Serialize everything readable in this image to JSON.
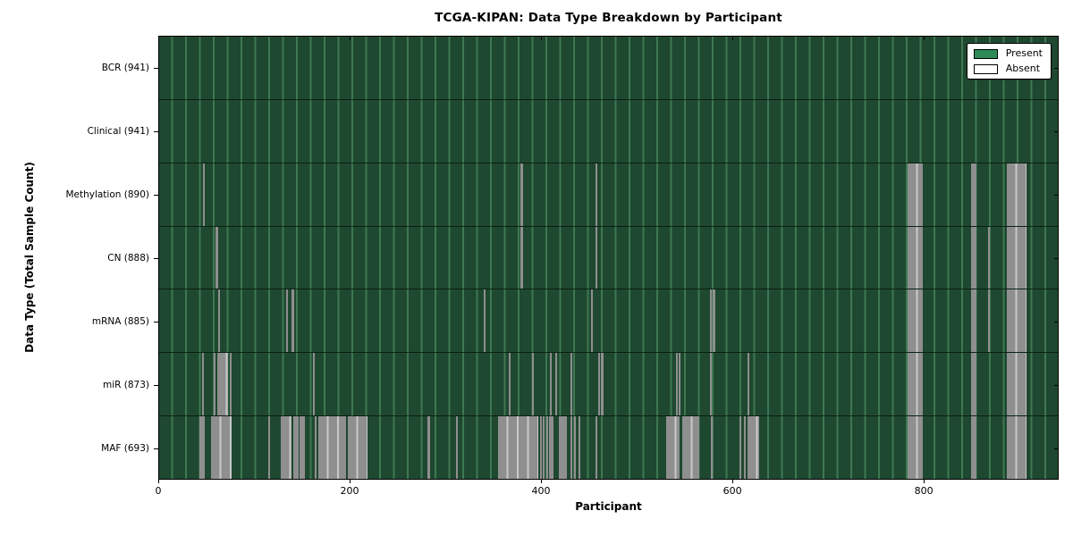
{
  "title": "TCGA-KIPAN: Data Type Breakdown by Participant",
  "axes": {
    "xlabel": "Participant",
    "ylabel": "Data Type (Total Sample Count)",
    "x_ticks": [
      "0",
      "200",
      "400",
      "600",
      "800"
    ]
  },
  "legend_entries": [
    {
      "label": "Present",
      "color": "#2e8b57"
    },
    {
      "label": "Absent",
      "color": "#ffffff"
    }
  ],
  "colors": {
    "present_fill_dense": "#1f4830",
    "present_grid_line": "#3e7852",
    "present_legend": "#2e8b57",
    "absent_fill": "#8f8f8f",
    "absent_light_stripe": "#c9c9c9",
    "frame": "#000000",
    "background": "#ffffff"
  },
  "chart_data": {
    "type": "heatmap",
    "title": "TCGA-KIPAN: Data Type Breakdown by Participant",
    "xlabel": "Participant",
    "ylabel": "Data Type (Total Sample Count)",
    "x_range": [
      0,
      941
    ],
    "x_tick_values": [
      0,
      200,
      400,
      600,
      800
    ],
    "legend": [
      "Present",
      "Absent"
    ],
    "grid": "vertical-light-lines",
    "legend_position": "upper right",
    "rows": [
      {
        "label": "BCR (941)",
        "data_type": "BCR",
        "present_count": 941,
        "absent_segments": []
      },
      {
        "label": "Clinical (941)",
        "data_type": "Clinical",
        "present_count": 941,
        "absent_segments": []
      },
      {
        "label": "Methylation (890)",
        "data_type": "Methylation",
        "present_count": 890,
        "absent_segments": [
          [
            46,
            48
          ],
          [
            378,
            381
          ],
          [
            457,
            459
          ],
          [
            784,
            800
          ],
          [
            850,
            856
          ],
          [
            888,
            908
          ]
        ]
      },
      {
        "label": "CN (888)",
        "data_type": "CN",
        "present_count": 888,
        "absent_segments": [
          [
            59,
            62
          ],
          [
            378,
            381
          ],
          [
            457,
            459
          ],
          [
            784,
            800
          ],
          [
            850,
            856
          ],
          [
            868,
            870
          ],
          [
            888,
            908
          ]
        ]
      },
      {
        "label": "mRNA (885)",
        "data_type": "mRNA",
        "present_count": 885,
        "absent_segments": [
          [
            62,
            64
          ],
          [
            133,
            135
          ],
          [
            139,
            141
          ],
          [
            340,
            342
          ],
          [
            452,
            454
          ],
          [
            577,
            579
          ],
          [
            580,
            582
          ],
          [
            784,
            800
          ],
          [
            850,
            856
          ],
          [
            868,
            870
          ],
          [
            888,
            908
          ]
        ]
      },
      {
        "label": "miR (873)",
        "data_type": "miR",
        "present_count": 873,
        "absent_segments": [
          [
            45,
            47
          ],
          [
            57,
            59
          ],
          [
            61,
            72
          ],
          [
            74,
            76
          ],
          [
            161,
            163
          ],
          [
            366,
            368
          ],
          [
            390,
            392
          ],
          [
            409,
            411
          ],
          [
            415,
            417
          ],
          [
            431,
            433
          ],
          [
            460,
            462
          ],
          [
            463,
            465
          ],
          [
            541,
            543
          ],
          [
            544,
            546
          ],
          [
            577,
            579
          ],
          [
            616,
            618
          ],
          [
            784,
            800
          ],
          [
            850,
            856
          ],
          [
            888,
            908
          ]
        ]
      },
      {
        "label": "MAF (693)",
        "data_type": "MAF",
        "present_count": 693,
        "absent_segments": [
          [
            42,
            48
          ],
          [
            54,
            76
          ],
          [
            114,
            116
          ],
          [
            127,
            139
          ],
          [
            140,
            146
          ],
          [
            147,
            153
          ],
          [
            163,
            165
          ],
          [
            167,
            196
          ],
          [
            198,
            218
          ],
          [
            281,
            284
          ],
          [
            311,
            313
          ],
          [
            355,
            397
          ],
          [
            399,
            401
          ],
          [
            402,
            404
          ],
          [
            405,
            407
          ],
          [
            408,
            413
          ],
          [
            419,
            427
          ],
          [
            431,
            433
          ],
          [
            434,
            436
          ],
          [
            439,
            441
          ],
          [
            457,
            459
          ],
          [
            531,
            545
          ],
          [
            548,
            566
          ],
          [
            578,
            580
          ],
          [
            608,
            610
          ],
          [
            612,
            614
          ],
          [
            616,
            628
          ],
          [
            784,
            800
          ],
          [
            850,
            856
          ],
          [
            888,
            908
          ]
        ]
      }
    ]
  }
}
